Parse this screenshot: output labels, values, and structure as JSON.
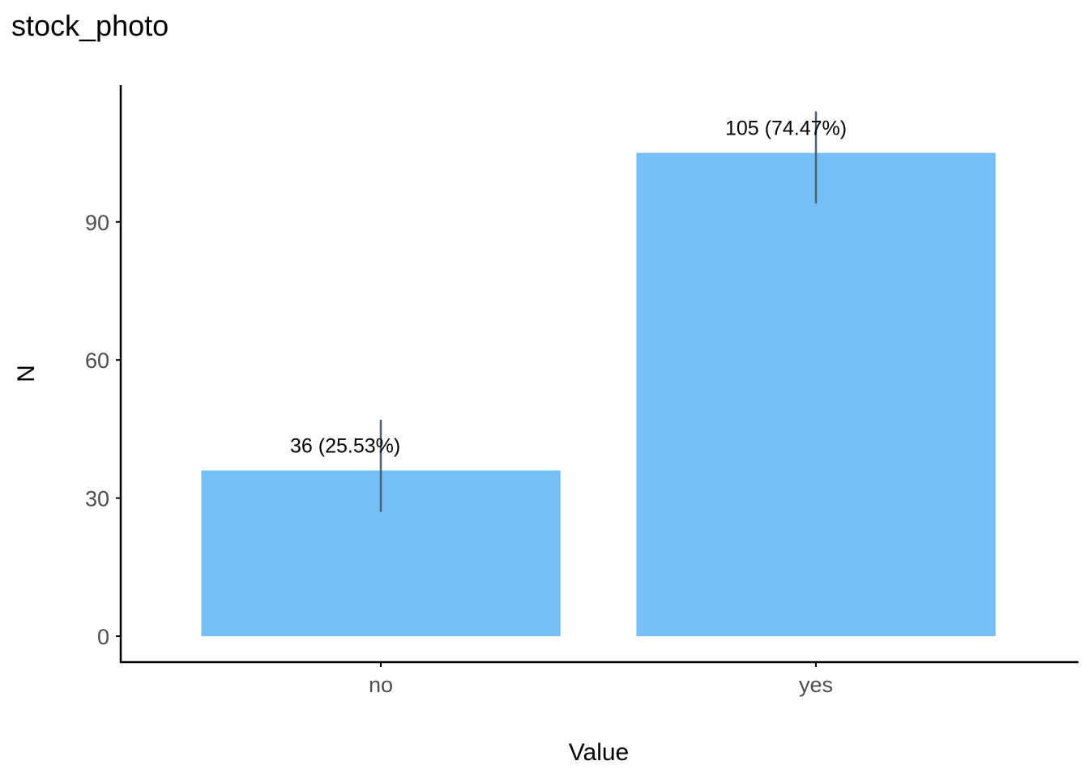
{
  "colors": {
    "bar": "#75bff7",
    "error_bar": "#4a6273",
    "axis": "#000000",
    "tick_text": "#4d4d4d"
  },
  "chart_data": {
    "type": "bar",
    "title": "stock_photo",
    "xlabel": "Value",
    "ylabel": "N",
    "categories": [
      "no",
      "yes"
    ],
    "values": [
      36,
      105
    ],
    "labels": [
      "36 (25.53%)",
      "105 (74.47%)"
    ],
    "error_bars": [
      {
        "low": 27,
        "high": 47
      },
      {
        "low": 94,
        "high": 114
      }
    ],
    "yticks": [
      0,
      30,
      60,
      90
    ],
    "ylim": [
      -5.7,
      120
    ],
    "grid": false,
    "legend": "none"
  }
}
